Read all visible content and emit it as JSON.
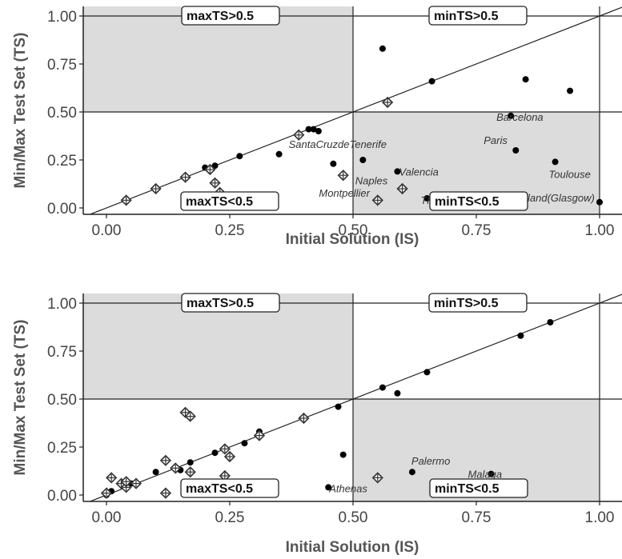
{
  "chart_data": [
    {
      "type": "scatter",
      "xlabel": "Initial Solution (IS)",
      "ylabel": "Min/Max Test Set (TS)",
      "xlim": [
        -0.1,
        1.05
      ],
      "ylim": [
        -0.04,
        1.04
      ],
      "xticks": [
        "0.00",
        "0.25",
        "0.50",
        "0.75",
        "1.00"
      ],
      "yticks": [
        "0.00",
        "0.25",
        "0.50",
        "0.75",
        "1.00"
      ],
      "grid": false,
      "reference_line": "y = x",
      "threshold": 0.5,
      "region_labels": [
        "maxTS>0.5",
        "minTS>0.5",
        "maxTS<0.5",
        "minTS<0.5"
      ],
      "series": [
        {
          "marker": "filled-dot",
          "points": [
            [
              0.2,
              0.21
            ],
            [
              0.22,
              0.22
            ],
            [
              0.27,
              0.27
            ],
            [
              0.35,
              0.28
            ],
            [
              0.41,
              0.41
            ],
            [
              0.42,
              0.41
            ],
            [
              0.43,
              0.4
            ],
            [
              0.46,
              0.23
            ],
            [
              0.52,
              0.25
            ],
            [
              0.56,
              0.83
            ],
            [
              0.59,
              0.19
            ],
            [
              0.65,
              0.05
            ],
            [
              0.66,
              0.66
            ],
            [
              0.82,
              0.48
            ],
            [
              0.83,
              0.3
            ],
            [
              0.85,
              0.67
            ],
            [
              0.91,
              0.24
            ],
            [
              0.94,
              0.61
            ],
            [
              1.0,
              0.03
            ]
          ]
        },
        {
          "marker": "crossed-diamond",
          "points": [
            [
              0.04,
              0.04
            ],
            [
              0.1,
              0.1
            ],
            [
              0.16,
              0.16
            ],
            [
              0.19,
              0.04
            ],
            [
              0.21,
              0.2
            ],
            [
              0.22,
              0.13
            ],
            [
              0.23,
              0.08
            ],
            [
              0.25,
              0.05
            ],
            [
              0.39,
              0.38
            ],
            [
              0.48,
              0.17
            ],
            [
              0.55,
              0.04
            ],
            [
              0.57,
              0.55
            ],
            [
              0.6,
              0.1
            ]
          ]
        }
      ],
      "annotations": [
        {
          "text": "Barcelona",
          "x": 0.82,
          "y": 0.48
        },
        {
          "text": "Paris",
          "x": 0.83,
          "y": 0.3
        },
        {
          "text": "SantaCruzdeTenerife",
          "x": 0.35,
          "y": 0.28
        },
        {
          "text": "Valencia",
          "x": 0.59,
          "y": 0.19
        },
        {
          "text": "Toulouse",
          "x": 0.91,
          "y": 0.24
        },
        {
          "text": "Naples",
          "x": 0.55,
          "y": 0.04
        },
        {
          "text": "Montpellier",
          "x": 0.46,
          "y": 0.23
        },
        {
          "text": "Thessaloniki",
          "x": 0.65,
          "y": 0.05
        },
        {
          "text": "Scotland(Glasgow)",
          "x": 1.0,
          "y": 0.03
        }
      ]
    },
    {
      "type": "scatter",
      "xlabel": "Initial Solution (IS)",
      "ylabel": "Min/Max Test Set (TS)",
      "xlim": [
        -0.1,
        1.05
      ],
      "ylim": [
        -0.04,
        1.04
      ],
      "xticks": [
        "0.00",
        "0.25",
        "0.50",
        "0.75",
        "1.00"
      ],
      "yticks": [
        "0.00",
        "0.25",
        "0.50",
        "0.75",
        "1.00"
      ],
      "grid": false,
      "reference_line": "y = x",
      "threshold": 0.5,
      "region_labels": [
        "maxTS>0.5",
        "minTS>0.5",
        "maxTS<0.5",
        "minTS<0.5"
      ],
      "series": [
        {
          "marker": "filled-dot",
          "points": [
            [
              0.0,
              0.0
            ],
            [
              0.01,
              0.02
            ],
            [
              0.05,
              0.06
            ],
            [
              0.1,
              0.12
            ],
            [
              0.15,
              0.13
            ],
            [
              0.17,
              0.17
            ],
            [
              0.22,
              0.22
            ],
            [
              0.28,
              0.27
            ],
            [
              0.31,
              0.33
            ],
            [
              0.31,
              0.03
            ],
            [
              0.45,
              0.04
            ],
            [
              0.47,
              0.46
            ],
            [
              0.48,
              0.21
            ],
            [
              0.56,
              0.56
            ],
            [
              0.59,
              0.53
            ],
            [
              0.62,
              0.12
            ],
            [
              0.65,
              0.64
            ],
            [
              0.78,
              0.11
            ],
            [
              0.84,
              0.83
            ],
            [
              0.9,
              0.9
            ]
          ]
        },
        {
          "marker": "crossed-diamond",
          "points": [
            [
              0.0,
              0.01
            ],
            [
              0.01,
              0.09
            ],
            [
              0.03,
              0.06
            ],
            [
              0.04,
              0.04
            ],
            [
              0.04,
              0.07
            ],
            [
              0.06,
              0.06
            ],
            [
              0.12,
              0.18
            ],
            [
              0.12,
              0.01
            ],
            [
              0.14,
              0.14
            ],
            [
              0.16,
              0.43
            ],
            [
              0.17,
              0.41
            ],
            [
              0.17,
              0.12
            ],
            [
              0.24,
              0.24
            ],
            [
              0.24,
              0.1
            ],
            [
              0.25,
              0.2
            ],
            [
              0.25,
              0.05
            ],
            [
              0.31,
              0.31
            ],
            [
              0.4,
              0.4
            ],
            [
              0.55,
              0.09
            ]
          ]
        }
      ],
      "annotations": [
        {
          "text": "Athenas",
          "x": 0.45,
          "y": 0.04
        },
        {
          "text": "Palermo",
          "x": 0.62,
          "y": 0.12
        },
        {
          "text": "Malaga",
          "x": 0.78,
          "y": 0.11
        }
      ]
    }
  ]
}
